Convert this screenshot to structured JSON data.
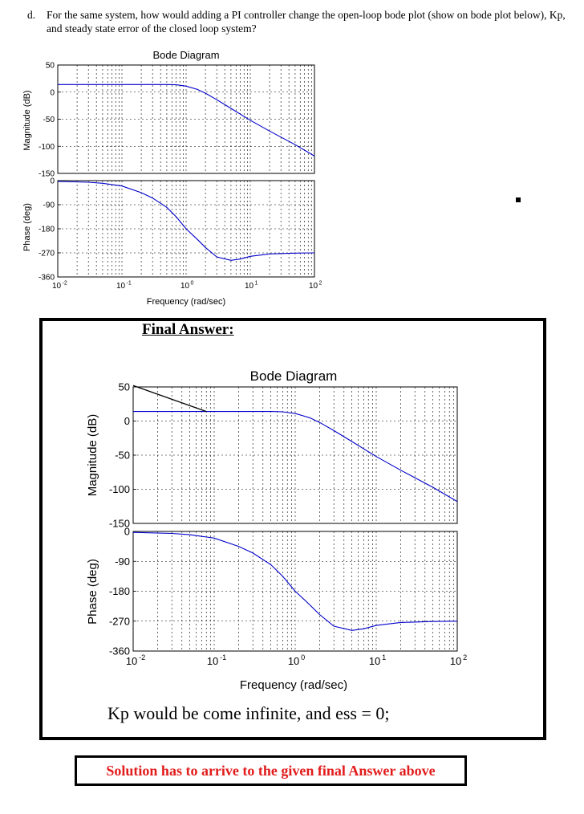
{
  "question": {
    "letter": "d.",
    "text": "For the same system, how would adding a PI controller change the open-loop bode plot (show on bode plot below), Kp, and steady state error of the closed loop system?"
  },
  "top_plot": {
    "title": "Bode Diagram",
    "mag_ylabel": "Magnitude (dB)",
    "phase_ylabel": "Phase (deg)",
    "xlabel": "Frequency (rad/sec)",
    "mag_ticks": [
      "50",
      "0",
      "-50",
      "-100",
      "-150"
    ],
    "phase_ticks": [
      "0",
      "-90",
      "-180",
      "-270",
      "-360"
    ]
  },
  "final_answer": {
    "title": "Final Answer:",
    "plot_title": "Bode Diagram",
    "mag_ylabel": "Magnitude (dB)",
    "phase_ylabel": "Phase (deg)",
    "xlabel": "Frequency (rad/sec)",
    "mag_ticks": [
      "50",
      "0",
      "-50",
      "-100",
      "-150"
    ],
    "phase_ticks": [
      "0",
      "-90",
      "-180",
      "-270",
      "-360"
    ],
    "answer_text": "Kp would be come infinite, and ess = 0;"
  },
  "note": "Solution has to arrive to the given final Answer above",
  "chart_data": [
    {
      "type": "line",
      "title": "Bode Diagram",
      "xlabel": "Frequency (rad/sec)",
      "xscale": "log",
      "xlim": [
        0.01,
        100
      ],
      "x_ticks": [
        0.01,
        0.1,
        1,
        10,
        100
      ],
      "x_tick_labels": [
        "10",
        "10",
        "10",
        "10",
        "10"
      ],
      "x_tick_exponents": [
        "-2",
        "-1",
        "0",
        "1",
        "2"
      ],
      "subplots": [
        {
          "ylabel": "Magnitude (dB)",
          "ylim": [
            -150,
            50
          ],
          "y_ticks": [
            50,
            0,
            -50,
            -100,
            -150
          ],
          "series": [
            {
              "name": "Magnitude",
              "color": "#0000cc",
              "x": [
                0.01,
                0.1,
                0.3,
                0.5,
                0.7,
                1,
                1.5,
                2,
                3,
                5,
                10,
                20,
                50,
                100
              ],
              "y": [
                14,
                14,
                14,
                14,
                13.5,
                11,
                5,
                -2,
                -14,
                -30,
                -52,
                -72,
                -97,
                -118
              ]
            }
          ]
        },
        {
          "ylabel": "Phase (deg)",
          "ylim": [
            -360,
            0
          ],
          "y_ticks": [
            0,
            -90,
            -180,
            -270,
            -360
          ],
          "series": [
            {
              "name": "Phase",
              "color": "#0000cc",
              "x": [
                0.01,
                0.03,
                0.05,
                0.1,
                0.2,
                0.3,
                0.5,
                0.7,
                1,
                1.5,
                2,
                3,
                5,
                7,
                10,
                20,
                50,
                100
              ],
              "y": [
                -3,
                -6,
                -10,
                -20,
                -45,
                -65,
                -100,
                -135,
                -180,
                -220,
                -250,
                -285,
                -298,
                -293,
                -283,
                -274,
                -271,
                -270
              ]
            }
          ]
        }
      ]
    },
    {
      "type": "line",
      "title": "Bode Diagram",
      "xlabel": "Frequency (rad/sec)",
      "xscale": "log",
      "xlim": [
        0.01,
        100
      ],
      "x_ticks": [
        0.01,
        0.1,
        1,
        10,
        100
      ],
      "x_tick_labels": [
        "10",
        "10",
        "10",
        "10",
        "10"
      ],
      "x_tick_exponents": [
        "-2",
        "-1",
        "0",
        "1",
        "2"
      ],
      "subplots": [
        {
          "ylabel": "Magnitude (dB)",
          "ylim": [
            -150,
            50
          ],
          "y_ticks": [
            50,
            0,
            -50,
            -100,
            -150
          ],
          "series": [
            {
              "name": "Magnitude",
              "color": "#0000cc",
              "x": [
                0.01,
                0.1,
                0.3,
                0.5,
                0.7,
                1,
                1.5,
                2,
                3,
                5,
                10,
                20,
                50,
                100
              ],
              "y": [
                14,
                14,
                14,
                14,
                13.5,
                11,
                5,
                -2,
                -14,
                -30,
                -52,
                -72,
                -97,
                -118
              ]
            },
            {
              "name": "PI integrator sketch",
              "color": "#000000",
              "x": [
                0.01,
                0.08
              ],
              "y": [
                52,
                14
              ]
            }
          ]
        },
        {
          "ylabel": "Phase (deg)",
          "ylim": [
            -360,
            0
          ],
          "y_ticks": [
            0,
            -90,
            -180,
            -270,
            -360
          ],
          "series": [
            {
              "name": "Phase",
              "color": "#0000cc",
              "x": [
                0.01,
                0.03,
                0.05,
                0.1,
                0.2,
                0.3,
                0.5,
                0.7,
                1,
                1.5,
                2,
                3,
                5,
                7,
                10,
                20,
                50,
                100
              ],
              "y": [
                -3,
                -6,
                -10,
                -20,
                -45,
                -65,
                -100,
                -135,
                -180,
                -220,
                -250,
                -285,
                -298,
                -293,
                -283,
                -274,
                -271,
                -270
              ]
            }
          ]
        }
      ]
    }
  ]
}
